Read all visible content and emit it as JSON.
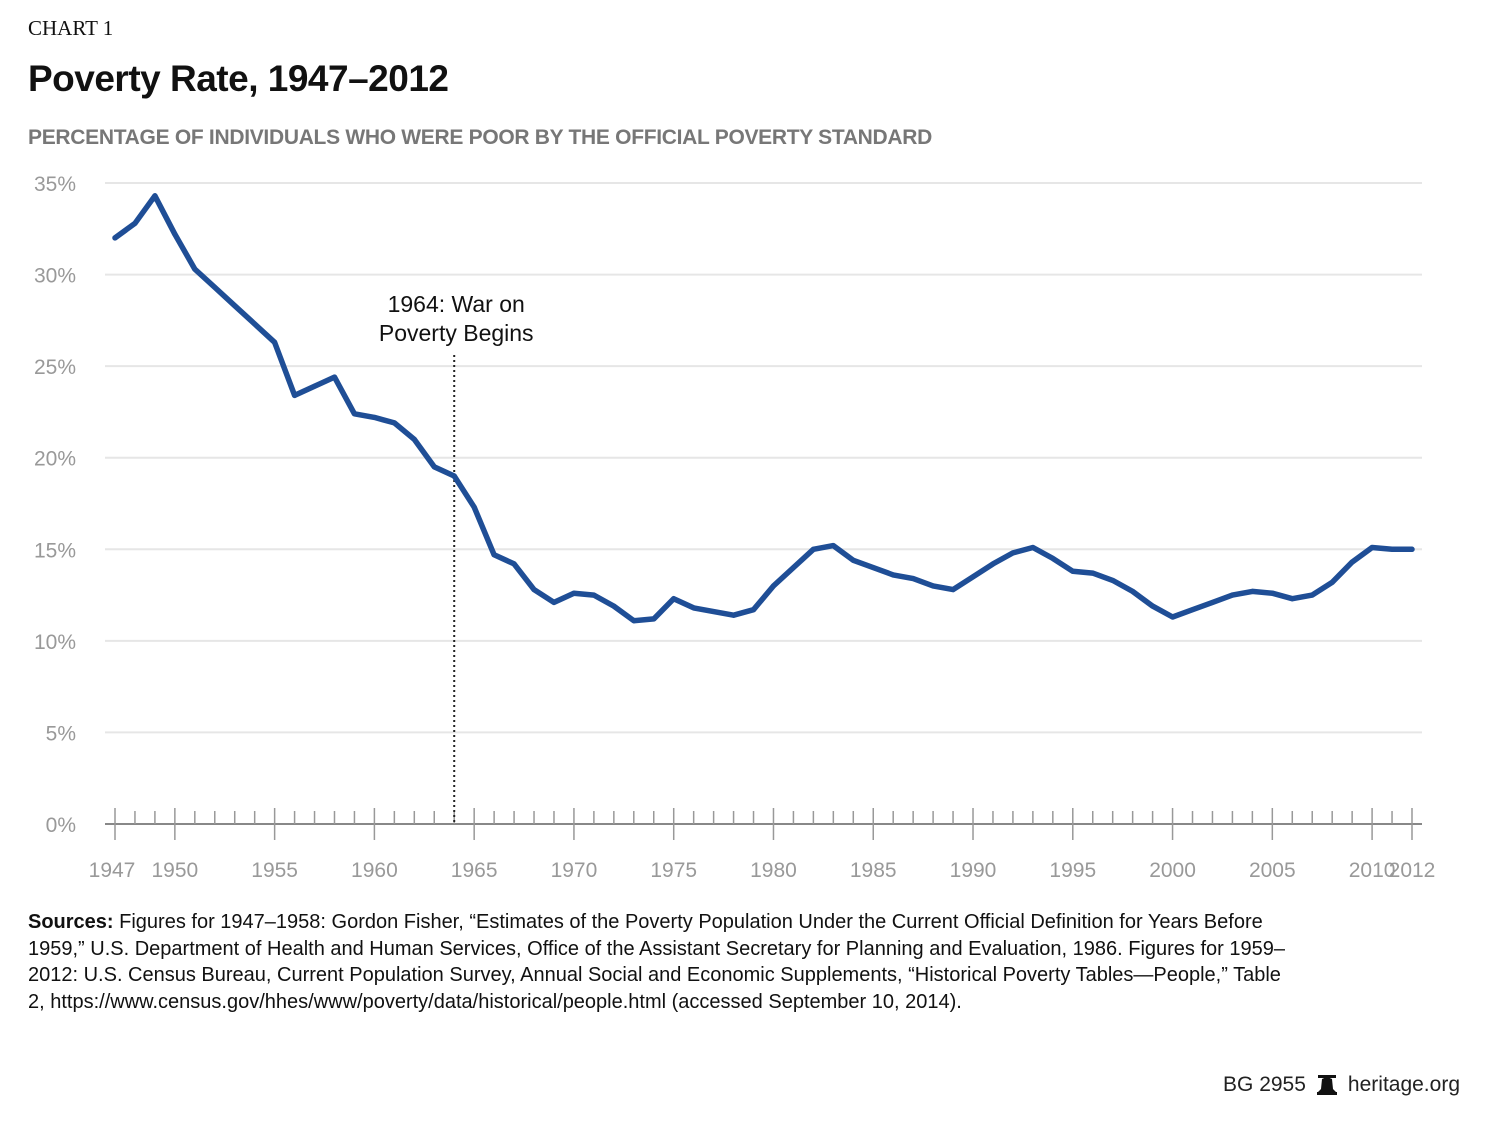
{
  "chart_label": "CHART 1",
  "chart_data": {
    "type": "line",
    "title": "Poverty Rate, 1947–2012",
    "subtitle": "PERCENTAGE OF INDIVIDUALS WHO WERE POOR BY THE OFFICIAL POVERTY STANDARD",
    "x": [
      1947,
      1948,
      1949,
      1950,
      1951,
      1952,
      1953,
      1954,
      1955,
      1956,
      1957,
      1958,
      1959,
      1960,
      1961,
      1962,
      1963,
      1964,
      1965,
      1966,
      1967,
      1968,
      1969,
      1970,
      1971,
      1972,
      1973,
      1974,
      1975,
      1976,
      1977,
      1978,
      1979,
      1980,
      1981,
      1982,
      1983,
      1984,
      1985,
      1986,
      1987,
      1988,
      1989,
      1990,
      1991,
      1992,
      1993,
      1994,
      1995,
      1996,
      1997,
      1998,
      1999,
      2000,
      2001,
      2002,
      2003,
      2004,
      2005,
      2006,
      2007,
      2008,
      2009,
      2010,
      2011,
      2012
    ],
    "values": [
      32.0,
      32.8,
      34.3,
      32.2,
      30.3,
      29.3,
      28.3,
      27.3,
      26.3,
      23.4,
      23.9,
      24.4,
      22.4,
      22.2,
      21.9,
      21.0,
      19.5,
      19.0,
      17.3,
      14.7,
      14.2,
      12.8,
      12.1,
      12.6,
      12.5,
      11.9,
      11.1,
      11.2,
      12.3,
      11.8,
      11.6,
      11.4,
      11.7,
      13.0,
      14.0,
      15.0,
      15.2,
      14.4,
      14.0,
      13.6,
      13.4,
      13.0,
      12.8,
      13.5,
      14.2,
      14.8,
      15.1,
      14.5,
      13.8,
      13.7,
      13.3,
      12.7,
      11.9,
      11.3,
      11.7,
      12.1,
      12.5,
      12.7,
      12.6,
      12.3,
      12.5,
      13.2,
      14.3,
      15.1,
      15.0,
      15.0
    ],
    "xlim": [
      1947,
      2012
    ],
    "ylim": [
      0,
      35
    ],
    "y_ticks": [
      0,
      5,
      10,
      15,
      20,
      25,
      30,
      35
    ],
    "y_tick_labels": [
      "0%",
      "5%",
      "10%",
      "15%",
      "20%",
      "25%",
      "30%",
      "35%"
    ],
    "x_ticks": [
      1947,
      1950,
      1955,
      1960,
      1965,
      1970,
      1975,
      1980,
      1985,
      1990,
      1995,
      2000,
      2005,
      2010,
      2012
    ],
    "x_tick_labels": [
      "1947",
      "1950",
      "1955",
      "1960",
      "1965",
      "1970",
      "1975",
      "1980",
      "1985",
      "1990",
      "1995",
      "2000",
      "2005",
      "2010",
      "2012"
    ],
    "grid": true,
    "line_color": "#1f4e96",
    "annotation": {
      "x": 1964,
      "lines": [
        "1964: War on",
        "Poverty Begins"
      ]
    }
  },
  "sources_label": "Sources:",
  "sources_text": " Figures for 1947–1958: Gordon Fisher, “Estimates of the Poverty Population Under the Current Official Definition for Years Before 1959,” U.S. Department of Health and Human Services, Office of the Assistant Secretary for Planning and Evaluation, 1986. Figures for 1959–2012: U.S. Census Bureau, Current Population Survey, Annual Social and Economic Supplements, “Historical Poverty Tables—People,” Table 2, https://www.census.gov/hhes/www/poverty/data/historical/people.html (accessed September 10, 2014).",
  "footer": {
    "code": "BG 2955",
    "logo_icon": "liberty-bell-icon",
    "site": "heritage.org"
  }
}
